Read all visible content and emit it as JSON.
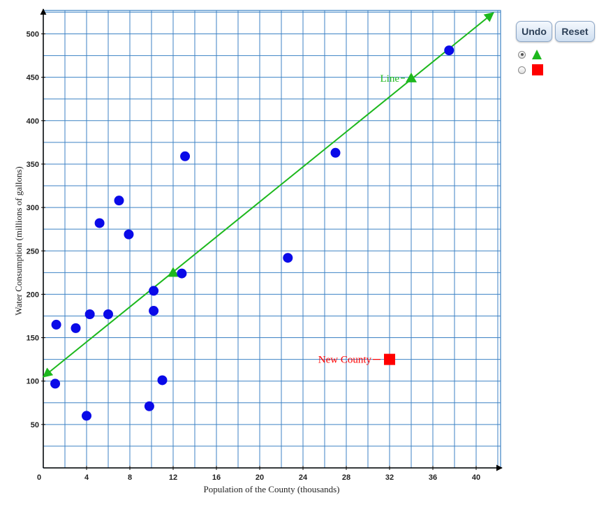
{
  "controls": {
    "undo_label": "Undo",
    "reset_label": "Reset",
    "tools": [
      {
        "name": "triangle-point-tool",
        "shape": "triangle",
        "color": "#1db81d",
        "selected": true
      },
      {
        "name": "square-point-tool",
        "shape": "square",
        "color": "#ff0000",
        "selected": false
      }
    ]
  },
  "chart_data": {
    "type": "scatter",
    "xlabel": "Population of the County (thousands)",
    "ylabel": "Water Consumption (millions of gallons)",
    "xlim": [
      0,
      42
    ],
    "ylim": [
      0,
      525
    ],
    "x_ticks": [
      0,
      4,
      8,
      12,
      16,
      20,
      24,
      28,
      32,
      36,
      40
    ],
    "y_ticks": [
      50,
      100,
      150,
      200,
      250,
      300,
      350,
      400,
      450,
      500
    ],
    "grid": {
      "x_step": 2,
      "y_step": 25
    },
    "colors": {
      "grid": "#3d82c4",
      "points": "#0a0ae8",
      "line": "#1db81d",
      "new_point": "#ff0000",
      "axis": "#000000"
    },
    "series": [
      {
        "values": [
          [
            1.1,
            97
          ],
          [
            1.2,
            165
          ],
          [
            3.0,
            161
          ],
          [
            4.0,
            60
          ],
          [
            4.3,
            177
          ],
          [
            5.2,
            282
          ],
          [
            6.0,
            177
          ],
          [
            7.0,
            308
          ],
          [
            7.9,
            269
          ],
          [
            9.8,
            71
          ],
          [
            10.2,
            204
          ],
          [
            10.2,
            181
          ],
          [
            11.0,
            101
          ],
          [
            12.8,
            224
          ],
          [
            13.1,
            359
          ],
          [
            22.6,
            242
          ],
          [
            27.0,
            363
          ],
          [
            37.5,
            481
          ]
        ]
      }
    ],
    "line": {
      "label": "Line",
      "points": [
        [
          12,
          225
        ],
        [
          34,
          449
        ]
      ],
      "start": [
        0,
        104.8
      ],
      "end": [
        41.6,
        524.3
      ]
    },
    "new_point": {
      "label": "New County",
      "x": 32,
      "y": 125
    }
  }
}
